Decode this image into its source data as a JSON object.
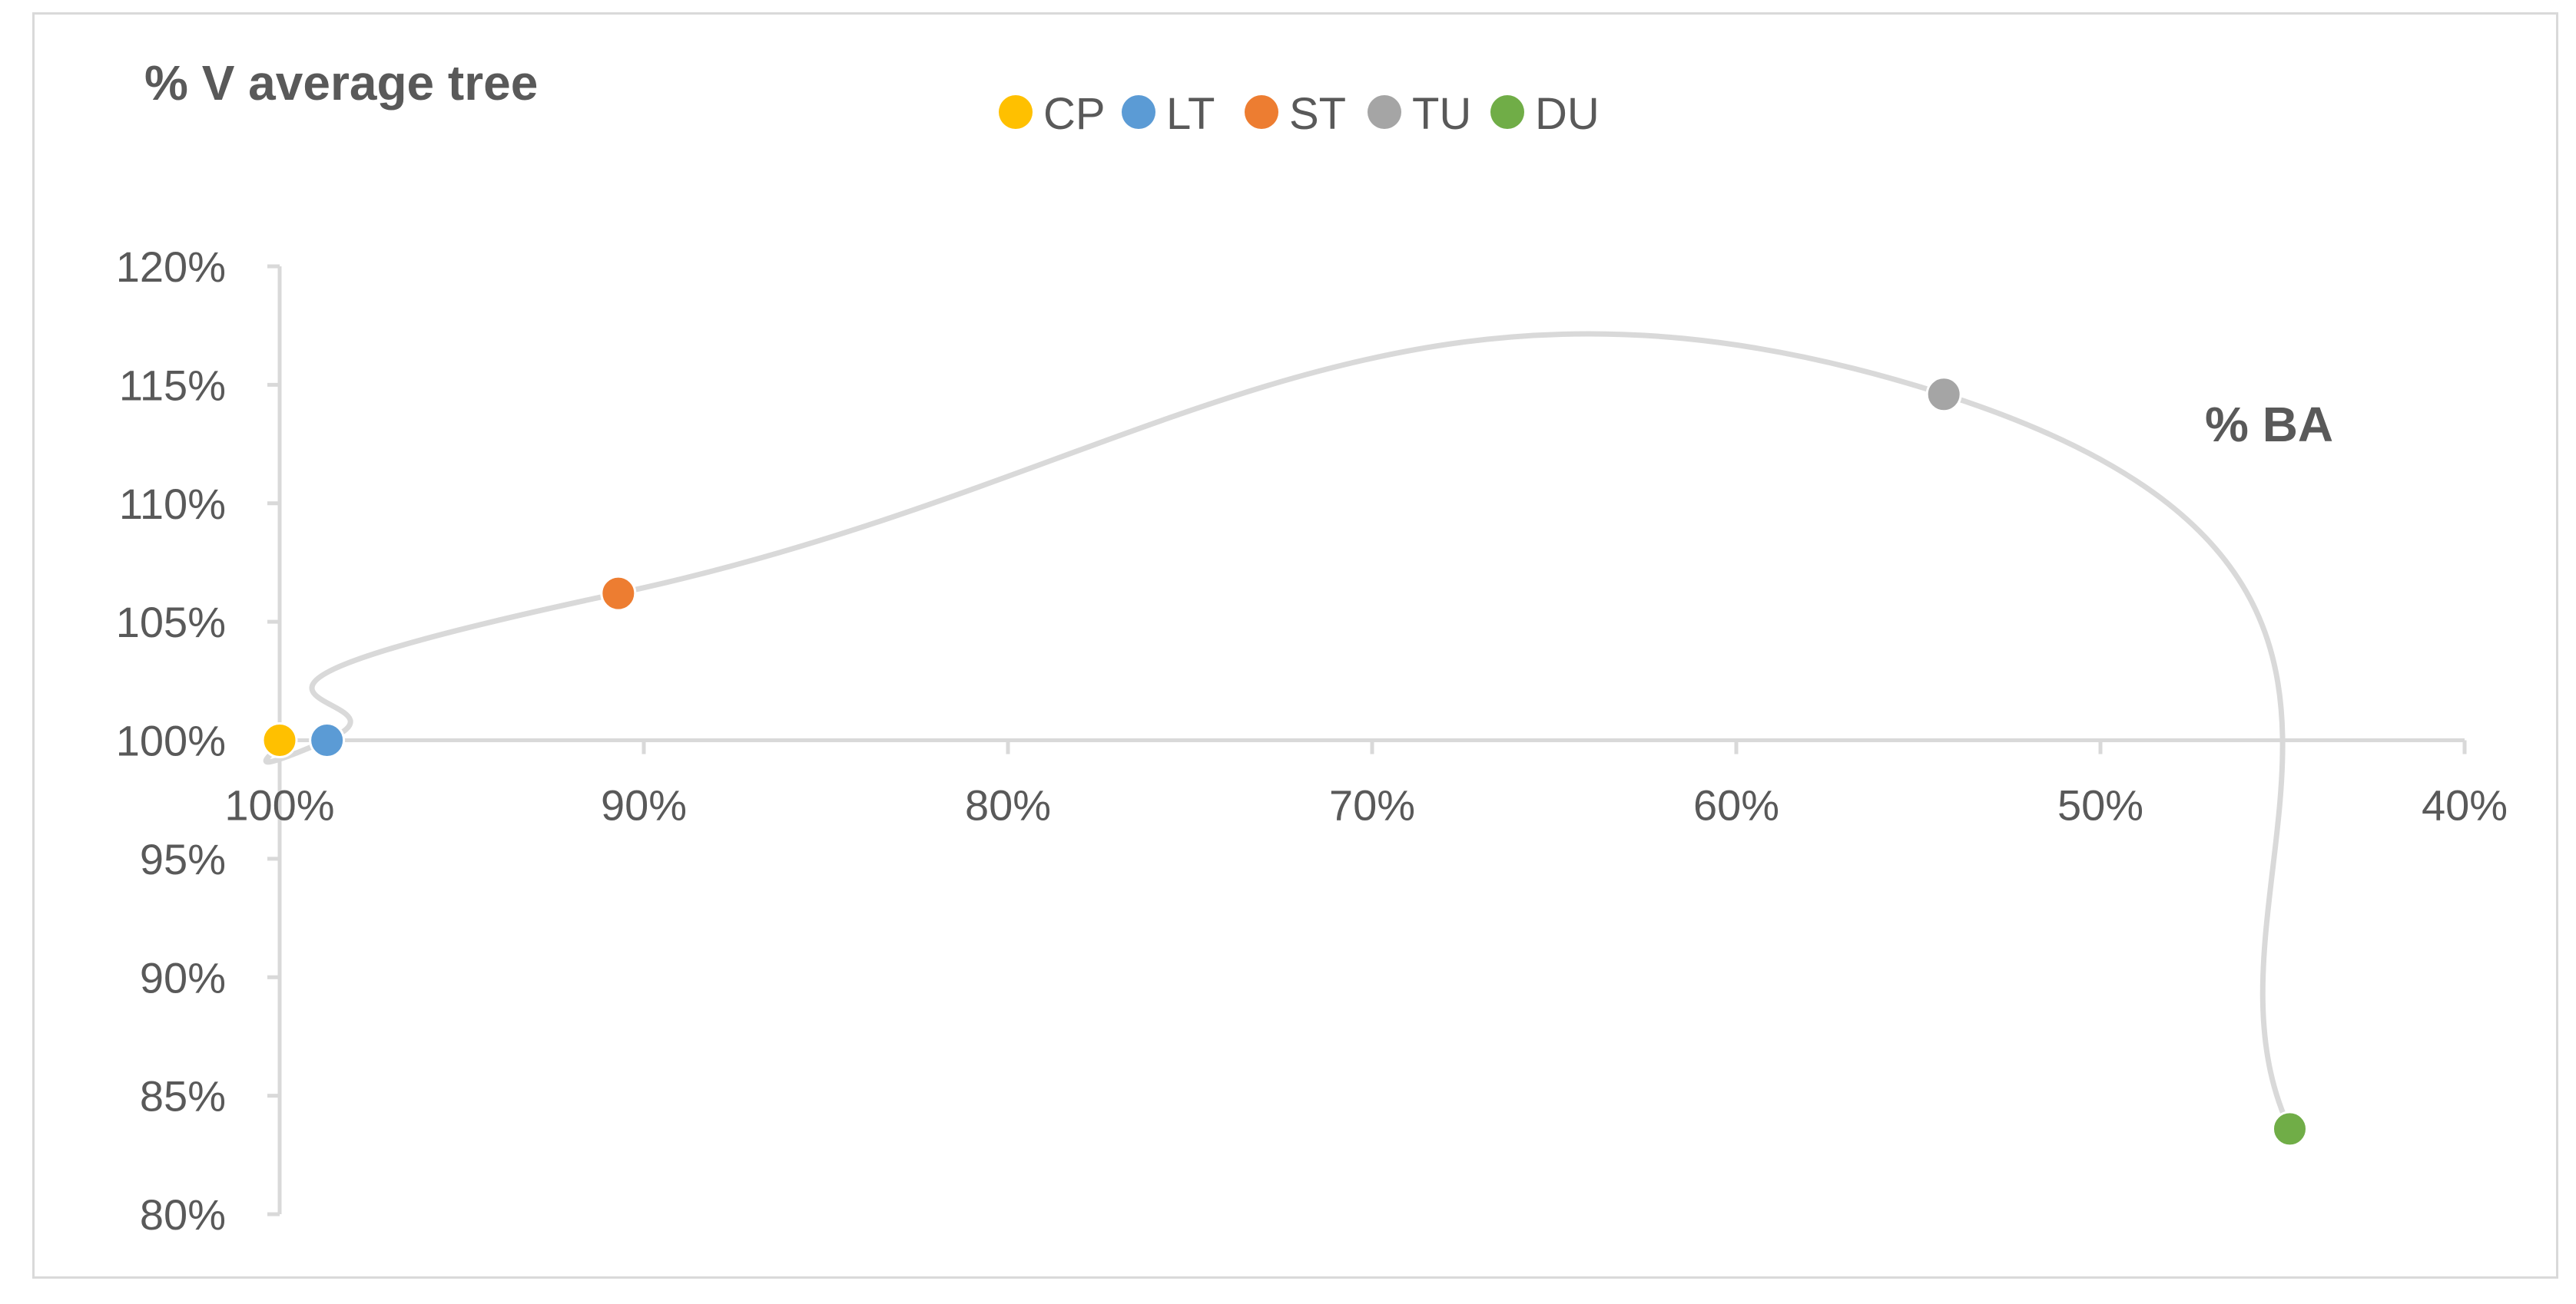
{
  "chart_data": {
    "type": "scatter",
    "title": "",
    "ylabel": "% V average tree",
    "xlabel": "% BA",
    "x_reversed": true,
    "xlim": [
      1.0,
      0.4
    ],
    "ylim": [
      0.8,
      1.2
    ],
    "x_ticks": [
      1.0,
      0.9,
      0.8,
      0.7,
      0.6,
      0.5,
      0.4
    ],
    "x_tick_labels": [
      "100%",
      "90%",
      "80%",
      "70%",
      "60%",
      "50%",
      "40%"
    ],
    "y_ticks": [
      0.8,
      0.85,
      0.9,
      0.95,
      1.0,
      1.05,
      1.1,
      1.15,
      1.2
    ],
    "y_tick_labels": [
      "80%",
      "85%",
      "90%",
      "95%",
      "100%",
      "105%",
      "110%",
      "115%",
      "120%"
    ],
    "x_axis_crosses_y": 1.0,
    "grid": false,
    "legend_position": "top",
    "curve_color": "#d9d9d9",
    "series": [
      {
        "name": "CP",
        "color": "#ffc000",
        "x": 1.0,
        "y": 1.0
      },
      {
        "name": "LT",
        "color": "#5b9bd5",
        "x": 0.987,
        "y": 1.0
      },
      {
        "name": "ST",
        "color": "#ed7d31",
        "x": 0.907,
        "y": 1.062
      },
      {
        "name": "TU",
        "color": "#a5a5a5",
        "x": 0.543,
        "y": 1.146
      },
      {
        "name": "DU",
        "color": "#70ad47",
        "x": 0.448,
        "y": 0.836
      }
    ]
  }
}
